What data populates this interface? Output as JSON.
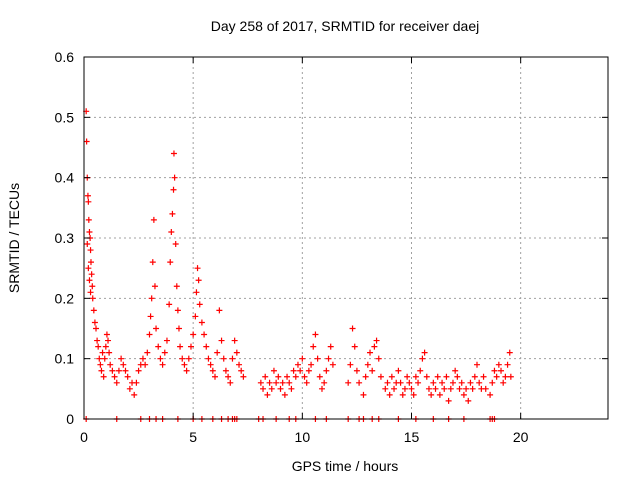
{
  "chart_data": {
    "type": "scatter",
    "title": "Day 258 of 2017, SRMTID for receiver daej",
    "xlabel": "GPS time / hours",
    "ylabel": "SRMTID / TECUs",
    "xlim": [
      0,
      24
    ],
    "ylim": [
      0,
      0.6
    ],
    "xticks": [
      0,
      5,
      10,
      15,
      20
    ],
    "xtick_labels": [
      "0",
      "5",
      "10",
      "15",
      "20"
    ],
    "yticks": [
      0,
      0.1,
      0.2,
      0.3,
      0.4,
      0.5,
      0.6
    ],
    "ytick_labels": [
      "0",
      "0.1",
      "0.2",
      "0.3",
      "0.4",
      "0.5",
      "0.6"
    ],
    "grid": true,
    "marker": "+",
    "series": [
      {
        "name": "SRMTID",
        "color": "#ff0000",
        "points": [
          [
            0.1,
            0.51
          ],
          [
            0.12,
            0.46
          ],
          [
            0.15,
            0.4
          ],
          [
            0.18,
            0.37
          ],
          [
            0.2,
            0.36
          ],
          [
            0.22,
            0.33
          ],
          [
            0.25,
            0.31
          ],
          [
            0.28,
            0.3
          ],
          [
            0.3,
            0.28
          ],
          [
            0.32,
            0.26
          ],
          [
            0.35,
            0.24
          ],
          [
            0.38,
            0.22
          ],
          [
            0.4,
            0.2
          ],
          [
            0.15,
            0.29
          ],
          [
            0.2,
            0.25
          ],
          [
            0.25,
            0.23
          ],
          [
            0.3,
            0.21
          ],
          [
            0.45,
            0.18
          ],
          [
            0.5,
            0.16
          ],
          [
            0.55,
            0.15
          ],
          [
            0.6,
            0.13
          ],
          [
            0.65,
            0.12
          ],
          [
            0.7,
            0.1
          ],
          [
            0.75,
            0.09
          ],
          [
            0.8,
            0.08
          ],
          [
            0.85,
            0.11
          ],
          [
            0.9,
            0.07
          ],
          [
            0.95,
            0.1
          ],
          [
            1.0,
            0.12
          ],
          [
            1.05,
            0.14
          ],
          [
            1.1,
            0.13
          ],
          [
            1.15,
            0.11
          ],
          [
            1.2,
            0.09
          ],
          [
            1.3,
            0.08
          ],
          [
            1.4,
            0.07
          ],
          [
            1.5,
            0.06
          ],
          [
            1.6,
            0.08
          ],
          [
            1.7,
            0.1
          ],
          [
            1.8,
            0.09
          ],
          [
            1.9,
            0.08
          ],
          [
            2.0,
            0.07
          ],
          [
            2.1,
            0.05
          ],
          [
            2.2,
            0.06
          ],
          [
            2.3,
            0.04
          ],
          [
            2.4,
            0.06
          ],
          [
            2.5,
            0.08
          ],
          [
            2.6,
            0.09
          ],
          [
            2.7,
            0.1
          ],
          [
            2.8,
            0.09
          ],
          [
            2.9,
            0.11
          ],
          [
            3.0,
            0.14
          ],
          [
            3.05,
            0.17
          ],
          [
            3.1,
            0.2
          ],
          [
            3.15,
            0.26
          ],
          [
            3.2,
            0.33
          ],
          [
            3.25,
            0.22
          ],
          [
            3.3,
            0.15
          ],
          [
            3.4,
            0.12
          ],
          [
            3.5,
            0.1
          ],
          [
            3.6,
            0.09
          ],
          [
            3.7,
            0.11
          ],
          [
            3.8,
            0.13
          ],
          [
            3.9,
            0.19
          ],
          [
            3.95,
            0.26
          ],
          [
            4.0,
            0.31
          ],
          [
            4.05,
            0.34
          ],
          [
            4.1,
            0.38
          ],
          [
            4.12,
            0.44
          ],
          [
            4.15,
            0.4
          ],
          [
            4.2,
            0.29
          ],
          [
            4.25,
            0.22
          ],
          [
            4.3,
            0.18
          ],
          [
            4.35,
            0.15
          ],
          [
            4.4,
            0.12
          ],
          [
            4.5,
            0.1
          ],
          [
            4.6,
            0.09
          ],
          [
            4.7,
            0.08
          ],
          [
            4.8,
            0.1
          ],
          [
            4.9,
            0.12
          ],
          [
            5.0,
            0.14
          ],
          [
            5.1,
            0.17
          ],
          [
            5.15,
            0.21
          ],
          [
            5.2,
            0.25
          ],
          [
            5.25,
            0.23
          ],
          [
            5.3,
            0.19
          ],
          [
            5.4,
            0.16
          ],
          [
            5.5,
            0.14
          ],
          [
            5.6,
            0.12
          ],
          [
            5.7,
            0.1
          ],
          [
            5.8,
            0.09
          ],
          [
            5.9,
            0.08
          ],
          [
            6.0,
            0.07
          ],
          [
            6.1,
            0.11
          ],
          [
            6.2,
            0.18
          ],
          [
            6.3,
            0.13
          ],
          [
            6.4,
            0.1
          ],
          [
            6.5,
            0.08
          ],
          [
            6.6,
            0.07
          ],
          [
            6.7,
            0.06
          ],
          [
            6.8,
            0.1
          ],
          [
            6.9,
            0.13
          ],
          [
            7.0,
            0.11
          ],
          [
            7.1,
            0.09
          ],
          [
            7.2,
            0.08
          ],
          [
            7.3,
            0.07
          ],
          [
            8.1,
            0.06
          ],
          [
            8.2,
            0.05
          ],
          [
            8.3,
            0.07
          ],
          [
            8.4,
            0.04
          ],
          [
            8.5,
            0.06
          ],
          [
            8.6,
            0.05
          ],
          [
            8.7,
            0.08
          ],
          [
            8.8,
            0.06
          ],
          [
            8.9,
            0.07
          ],
          [
            9.0,
            0.05
          ],
          [
            9.1,
            0.06
          ],
          [
            9.2,
            0.04
          ],
          [
            9.3,
            0.07
          ],
          [
            9.4,
            0.06
          ],
          [
            9.5,
            0.05
          ],
          [
            9.6,
            0.08
          ],
          [
            9.7,
            0.07
          ],
          [
            9.8,
            0.09
          ],
          [
            9.9,
            0.08
          ],
          [
            10.0,
            0.1
          ],
          [
            10.1,
            0.07
          ],
          [
            10.2,
            0.06
          ],
          [
            10.3,
            0.08
          ],
          [
            10.4,
            0.09
          ],
          [
            10.5,
            0.12
          ],
          [
            10.6,
            0.14
          ],
          [
            10.7,
            0.1
          ],
          [
            10.8,
            0.07
          ],
          [
            10.9,
            0.05
          ],
          [
            11.0,
            0.06
          ],
          [
            11.1,
            0.08
          ],
          [
            11.2,
            0.1
          ],
          [
            11.3,
            0.12
          ],
          [
            11.4,
            0.09
          ],
          [
            12.1,
            0.06
          ],
          [
            12.2,
            0.09
          ],
          [
            12.3,
            0.15
          ],
          [
            12.4,
            0.12
          ],
          [
            12.5,
            0.08
          ],
          [
            12.6,
            0.06
          ],
          [
            12.8,
            0.04
          ],
          [
            12.9,
            0.07
          ],
          [
            13.0,
            0.09
          ],
          [
            13.1,
            0.11
          ],
          [
            13.2,
            0.08
          ],
          [
            13.3,
            0.12
          ],
          [
            13.4,
            0.13
          ],
          [
            13.5,
            0.1
          ],
          [
            13.6,
            0.07
          ],
          [
            13.8,
            0.05
          ],
          [
            13.9,
            0.06
          ],
          [
            14.0,
            0.04
          ],
          [
            14.1,
            0.07
          ],
          [
            14.2,
            0.05
          ],
          [
            14.3,
            0.06
          ],
          [
            14.4,
            0.08
          ],
          [
            14.5,
            0.06
          ],
          [
            14.6,
            0.04
          ],
          [
            14.7,
            0.05
          ],
          [
            14.8,
            0.07
          ],
          [
            14.9,
            0.06
          ],
          [
            15.0,
            0.05
          ],
          [
            15.1,
            0.04
          ],
          [
            15.2,
            0.07
          ],
          [
            15.3,
            0.06
          ],
          [
            15.4,
            0.08
          ],
          [
            15.5,
            0.1
          ],
          [
            15.6,
            0.11
          ],
          [
            15.7,
            0.07
          ],
          [
            15.8,
            0.05
          ],
          [
            15.9,
            0.04
          ],
          [
            16.0,
            0.06
          ],
          [
            16.1,
            0.05
          ],
          [
            16.2,
            0.07
          ],
          [
            16.3,
            0.04
          ],
          [
            16.4,
            0.06
          ],
          [
            16.5,
            0.05
          ],
          [
            16.6,
            0.07
          ],
          [
            16.7,
            0.03
          ],
          [
            16.8,
            0.05
          ],
          [
            16.9,
            0.06
          ],
          [
            17.0,
            0.08
          ],
          [
            17.1,
            0.07
          ],
          [
            17.2,
            0.05
          ],
          [
            17.3,
            0.06
          ],
          [
            17.4,
            0.04
          ],
          [
            17.5,
            0.05
          ],
          [
            17.6,
            0.03
          ],
          [
            17.7,
            0.06
          ],
          [
            17.8,
            0.05
          ],
          [
            17.9,
            0.07
          ],
          [
            18.0,
            0.09
          ],
          [
            18.1,
            0.06
          ],
          [
            18.2,
            0.05
          ],
          [
            18.3,
            0.07
          ],
          [
            18.4,
            0.05
          ],
          [
            18.6,
            0.04
          ],
          [
            18.7,
            0.06
          ],
          [
            18.8,
            0.08
          ],
          [
            18.9,
            0.07
          ],
          [
            19.0,
            0.09
          ],
          [
            19.1,
            0.08
          ],
          [
            19.2,
            0.06
          ],
          [
            19.3,
            0.07
          ],
          [
            19.4,
            0.09
          ],
          [
            19.5,
            0.11
          ],
          [
            19.55,
            0.07
          ]
        ],
        "zero_points_x": [
          0.1,
          1.5,
          2.6,
          3.0,
          3.3,
          3.6,
          4.3,
          5.0,
          5.4,
          5.9,
          6.3,
          6.6,
          6.8,
          6.9,
          7.0,
          8.0,
          8.2,
          8.8,
          9.4,
          9.7,
          10.6,
          11.1,
          12.1,
          12.6,
          12.8,
          13.2,
          13.5,
          14.4,
          15.2,
          16.0,
          16.7,
          17.4,
          18.6,
          18.7,
          18.8
        ]
      }
    ]
  }
}
